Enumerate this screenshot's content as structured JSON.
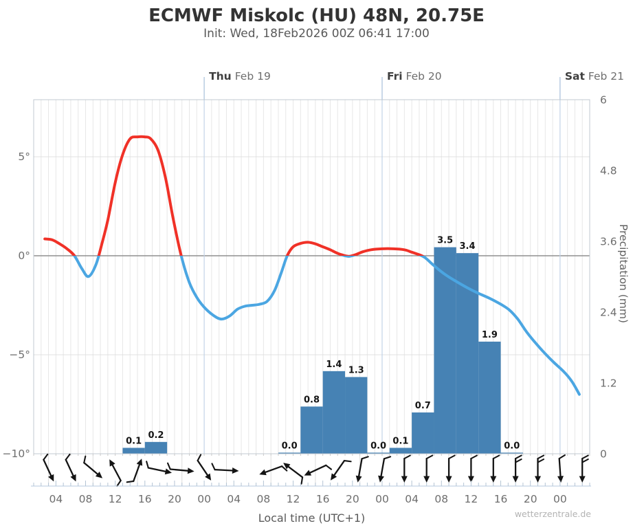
{
  "header": {
    "title": "ECMWF Miskolc (HU) 48N, 20.75E",
    "subtitle": "Init: Wed, 18Feb2026 00Z 06:41 17:00"
  },
  "watermark": "wetterzentrale.de",
  "colors": {
    "temp_warm": "#f03127",
    "temp_cold": "#4ba6e2",
    "precip_bar": "#4682b4",
    "zero_line": "#8f8f8f",
    "grid_minor": "#e7e7e7",
    "grid_major": "#e0e0e0",
    "day_line": "#c2d3e8",
    "day_tick": "#b3c8e0",
    "spine": "#c0c8d0",
    "time_axis": "#c3d3e5",
    "time_tick": "#b4c4d4",
    "minor_tick": "#c9c9c9",
    "barb": "#141414",
    "strip_sep": "#dcdcdc"
  },
  "chart_data": {
    "type": [
      "line",
      "bar"
    ],
    "title": "ECMWF Miskolc (HU) 48N, 20.75E",
    "subtitle": "Init: Wed, 18Feb2026 00Z 06:41 17:00",
    "x_axis": {
      "label": "Local time (UTC+1)",
      "range_hours": [
        1,
        76
      ],
      "label_hours": [
        4,
        8,
        12,
        16,
        20,
        24,
        28,
        32,
        36,
        40,
        44,
        48,
        52,
        56,
        60,
        64,
        68,
        72
      ],
      "labels": [
        "04",
        "08",
        "12",
        "16",
        "20",
        "00",
        "04",
        "08",
        "12",
        "16",
        "20",
        "00",
        "04",
        "08",
        "12",
        "16",
        "20",
        "00"
      ],
      "days": [
        {
          "bold": "Thu",
          "date": "Feb 19",
          "hour": 24
        },
        {
          "bold": "Fri",
          "date": "Feb 20",
          "hour": 48
        },
        {
          "bold": "Sat",
          "date": "Feb 21",
          "hour": 72
        }
      ]
    },
    "y_temp": {
      "range": [
        -10,
        7.88
      ],
      "ticks": [
        {
          "label": "5°",
          "value": 5
        },
        {
          "label": "0°",
          "value": 0
        },
        {
          "label": "−5°",
          "value": -5
        },
        {
          "label": "−10°",
          "value": -10
        }
      ],
      "gridline_values": [
        5,
        -5
      ],
      "zero_line_value": 0
    },
    "y_precip": {
      "label": "Precipitation (mm)",
      "range": [
        0,
        6
      ],
      "ticks": [
        6,
        4.8,
        3.6,
        2.4,
        1.2,
        0
      ]
    },
    "temperature": {
      "name": "2m temperature (°C), red above 0, blue below 0",
      "points": [
        [
          2.5,
          0.85
        ],
        [
          3.5,
          0.8
        ],
        [
          4.5,
          0.6
        ],
        [
          5.5,
          0.35
        ],
        [
          6.5,
          0.0
        ],
        [
          7.5,
          -0.65
        ],
        [
          8.4,
          -1.05
        ],
        [
          9.4,
          -0.45
        ],
        [
          10.2,
          0.6
        ],
        [
          11,
          1.8
        ],
        [
          12,
          3.7
        ],
        [
          13,
          5.1
        ],
        [
          14,
          5.9
        ],
        [
          15,
          6.0
        ],
        [
          16,
          6.0
        ],
        [
          16.8,
          5.9
        ],
        [
          17.8,
          5.3
        ],
        [
          18.8,
          3.9
        ],
        [
          19.8,
          1.9
        ],
        [
          20.9,
          0.0
        ],
        [
          22,
          -1.35
        ],
        [
          23,
          -2.1
        ],
        [
          24,
          -2.6
        ],
        [
          25.2,
          -3.0
        ],
        [
          26.3,
          -3.2
        ],
        [
          27.4,
          -3.05
        ],
        [
          28.5,
          -2.7
        ],
        [
          29.5,
          -2.55
        ],
        [
          30.5,
          -2.5
        ],
        [
          31.5,
          -2.45
        ],
        [
          32.5,
          -2.3
        ],
        [
          33.5,
          -1.75
        ],
        [
          34.4,
          -0.85
        ],
        [
          35.2,
          0.0
        ],
        [
          36,
          0.45
        ],
        [
          37,
          0.62
        ],
        [
          38,
          0.68
        ],
        [
          39,
          0.6
        ],
        [
          40,
          0.45
        ],
        [
          41,
          0.3
        ],
        [
          42,
          0.12
        ],
        [
          43,
          0.0
        ],
        [
          43.6,
          -0.03
        ],
        [
          44.4,
          0.05
        ],
        [
          45.4,
          0.2
        ],
        [
          46.5,
          0.3
        ],
        [
          48,
          0.35
        ],
        [
          49.5,
          0.35
        ],
        [
          51,
          0.3
        ],
        [
          52,
          0.18
        ],
        [
          53,
          0.05
        ],
        [
          53.8,
          -0.1
        ],
        [
          55,
          -0.5
        ],
        [
          56.5,
          -0.95
        ],
        [
          58,
          -1.3
        ],
        [
          59.5,
          -1.62
        ],
        [
          61,
          -1.9
        ],
        [
          62.5,
          -2.15
        ],
        [
          64,
          -2.45
        ],
        [
          65.2,
          -2.75
        ],
        [
          66.3,
          -3.2
        ],
        [
          67.5,
          -3.85
        ],
        [
          68.8,
          -4.45
        ],
        [
          70,
          -4.95
        ],
        [
          71.2,
          -5.4
        ],
        [
          72.5,
          -5.85
        ],
        [
          73.6,
          -6.35
        ],
        [
          74.6,
          -7.0
        ]
      ]
    },
    "precipitation": {
      "name": "3h precipitation (mm)",
      "bars": [
        {
          "from": 13,
          "to": 16,
          "value": 0.1
        },
        {
          "from": 16,
          "to": 19,
          "value": 0.2
        },
        {
          "from": 34,
          "to": 37,
          "value": 0.0
        },
        {
          "from": 37,
          "to": 40,
          "value": 0.8
        },
        {
          "from": 40,
          "to": 43,
          "value": 1.4
        },
        {
          "from": 43,
          "to": 46,
          "value": 1.3
        },
        {
          "from": 46,
          "to": 49,
          "value": 0.0
        },
        {
          "from": 49,
          "to": 52,
          "value": 0.1
        },
        {
          "from": 52,
          "to": 55,
          "value": 0.7
        },
        {
          "from": 55,
          "to": 58,
          "value": 3.5
        },
        {
          "from": 58,
          "to": 61,
          "value": 3.4
        },
        {
          "from": 61,
          "to": 64,
          "value": 1.9
        },
        {
          "from": 64,
          "to": 67,
          "value": 0.0
        }
      ]
    },
    "wind_barbs": {
      "name": "surface wind direction barbs, arrow points downwind, 0 = arrow pointing down/south",
      "barbs": [
        {
          "hour": 3,
          "rotation": -25,
          "ticks": 1
        },
        {
          "hour": 6,
          "rotation": -25,
          "ticks": 1
        },
        {
          "hour": 9,
          "rotation": -50,
          "ticks": 1
        },
        {
          "hour": 12,
          "rotation": 152,
          "ticks": 1
        },
        {
          "hour": 15,
          "rotation": -160,
          "ticks": 1
        },
        {
          "hour": 18,
          "rotation": -78,
          "ticks": 1
        },
        {
          "hour": 21,
          "rotation": -85,
          "ticks": 1
        },
        {
          "hour": 24,
          "rotation": -34,
          "ticks": 1
        },
        {
          "hour": 27,
          "rotation": -87,
          "ticks": 1
        },
        {
          "hour": 33,
          "rotation": 70,
          "ticks": 1
        },
        {
          "hour": 36,
          "rotation": 127,
          "ticks": 1
        },
        {
          "hour": 39,
          "rotation": 65,
          "ticks": 1
        },
        {
          "hour": 42,
          "rotation": 35,
          "ticks": 1
        },
        {
          "hour": 45,
          "rotation": 10,
          "ticks": 1
        },
        {
          "hour": 48,
          "rotation": 10,
          "ticks": 1
        },
        {
          "hour": 51,
          "rotation": 0,
          "ticks": 1
        },
        {
          "hour": 54,
          "rotation": 0,
          "ticks": 1
        },
        {
          "hour": 57,
          "rotation": 0,
          "ticks": 1
        },
        {
          "hour": 60,
          "rotation": 0,
          "ticks": 1
        },
        {
          "hour": 63,
          "rotation": 0,
          "ticks": 1
        },
        {
          "hour": 66,
          "rotation": 0,
          "ticks": 2
        },
        {
          "hour": 69,
          "rotation": 0,
          "ticks": 2
        },
        {
          "hour": 72,
          "rotation": -4,
          "ticks": 1
        },
        {
          "hour": 75,
          "rotation": 0,
          "ticks": 2
        }
      ]
    }
  }
}
